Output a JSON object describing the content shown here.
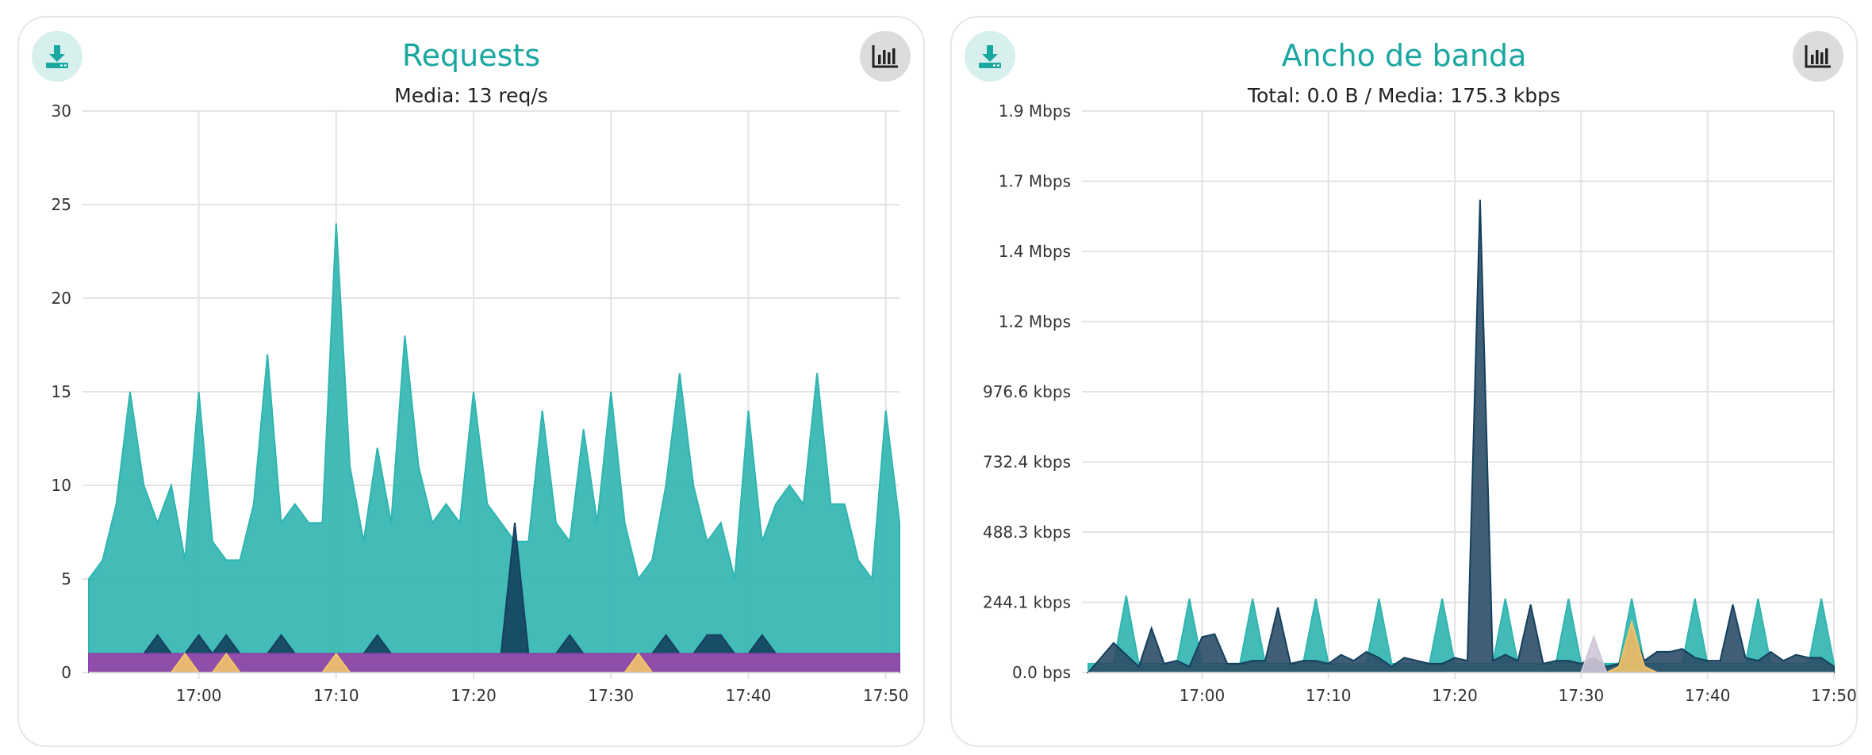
{
  "colors": {
    "accent": "#1aa7a0",
    "series_teal": "#2fb5b0",
    "series_navy": "#14405e",
    "series_purple": "#8e44ad",
    "series_orange": "#d98c5a",
    "series_yellow": "#f2c46b",
    "series_pink": "#d68f8f"
  },
  "panels": [
    {
      "title": "Requests",
      "subtitle": "Media: 13 req/s",
      "download_icon": "download-icon",
      "chart_icon": "bar-chart-icon"
    },
    {
      "title": "Ancho de banda",
      "subtitle": "Total: 0.0 B / Media: 175.3 kbps",
      "download_icon": "download-icon",
      "chart_icon": "bar-chart-icon"
    }
  ],
  "chart_data": [
    {
      "type": "area",
      "title": "Requests",
      "subtitle": "Media: 13 req/s",
      "xlabel": "",
      "ylabel": "",
      "ylim": [
        0,
        30
      ],
      "y_ticks": [
        "0",
        "5",
        "10",
        "15",
        "20",
        "25",
        "30"
      ],
      "x_ticks": [
        "17:00",
        "17:10",
        "17:20",
        "17:30",
        "17:40",
        "17:50"
      ],
      "x_range_min": [
        52,
        111
      ],
      "grid": true,
      "series": [
        {
          "color": "#2fb5b0",
          "fill": "#2fb5b0",
          "x": [
            52,
            53,
            54,
            55,
            56,
            57,
            58,
            59,
            60,
            61,
            62,
            63,
            64,
            65,
            66,
            67,
            68,
            69,
            70,
            71,
            72,
            73,
            74,
            75,
            76,
            77,
            78,
            79,
            80,
            81,
            82,
            83,
            84,
            85,
            86,
            87,
            88,
            89,
            90,
            91,
            92,
            93,
            94,
            95,
            96,
            97,
            98,
            99,
            100,
            101,
            102,
            103,
            104,
            105,
            106,
            107,
            108,
            109,
            110,
            111
          ],
          "values": [
            5,
            6,
            9,
            15,
            10,
            8,
            10,
            6,
            15,
            7,
            6,
            6,
            9,
            17,
            8,
            9,
            8,
            8,
            24,
            11,
            7,
            12,
            8,
            18,
            11,
            8,
            9,
            8,
            15,
            9,
            8,
            7,
            7,
            14,
            8,
            7,
            13,
            8,
            15,
            8,
            5,
            6,
            10,
            16,
            10,
            7,
            8,
            5,
            14,
            7,
            9,
            10,
            9,
            16,
            9,
            9,
            6,
            5,
            14,
            8
          ]
        },
        {
          "color": "#14405e",
          "fill": "#14405e",
          "x": [
            52,
            53,
            54,
            55,
            56,
            57,
            58,
            59,
            60,
            61,
            62,
            63,
            64,
            65,
            66,
            67,
            68,
            69,
            70,
            71,
            72,
            73,
            74,
            75,
            76,
            77,
            78,
            79,
            80,
            81,
            82,
            83,
            84,
            85,
            86,
            87,
            88,
            89,
            90,
            91,
            92,
            93,
            94,
            95,
            96,
            97,
            98,
            99,
            100,
            101,
            102,
            103,
            104,
            105,
            106,
            107,
            108,
            109,
            110,
            111
          ],
          "values": [
            1,
            1,
            1,
            1,
            1,
            2,
            1,
            1,
            2,
            1,
            2,
            1,
            1,
            1,
            2,
            1,
            1,
            1,
            1,
            1,
            1,
            2,
            1,
            1,
            1,
            1,
            1,
            1,
            1,
            1,
            1,
            8,
            1,
            1,
            1,
            2,
            1,
            1,
            1,
            1,
            1,
            1,
            2,
            1,
            1,
            2,
            2,
            1,
            1,
            2,
            1,
            1,
            1,
            1,
            1,
            1,
            1,
            1,
            1,
            1
          ]
        },
        {
          "color": "#8e44ad",
          "fill": "#9b4fb0",
          "x": [
            52,
            53,
            54,
            55,
            56,
            57,
            58,
            59,
            60,
            61,
            62,
            63,
            64,
            65,
            66,
            67,
            68,
            69,
            70,
            71,
            72,
            73,
            74,
            75,
            76,
            77,
            78,
            79,
            80,
            81,
            82,
            83,
            84,
            85,
            86,
            87,
            88,
            89,
            90,
            91,
            92,
            93,
            94,
            95,
            96,
            97,
            98,
            99,
            100,
            101,
            102,
            103,
            104,
            105,
            106,
            107,
            108,
            109,
            110,
            111
          ],
          "values": [
            1,
            1,
            1,
            1,
            1,
            1,
            1,
            1,
            1,
            1,
            1,
            1,
            1,
            1,
            1,
            1,
            1,
            1,
            1,
            1,
            1,
            1,
            1,
            1,
            1,
            1,
            1,
            1,
            1,
            1,
            1,
            1,
            1,
            1,
            1,
            1,
            1,
            1,
            1,
            1,
            1,
            1,
            1,
            1,
            1,
            1,
            1,
            1,
            1,
            1,
            1,
            1,
            1,
            1,
            1,
            1,
            1,
            1,
            1,
            1
          ]
        },
        {
          "color": "#f2c46b",
          "fill": "#f2c46b",
          "x": [
            58,
            59,
            60,
            61,
            62,
            63,
            64,
            69,
            70,
            71,
            90,
            91,
            92,
            93
          ],
          "values": [
            0,
            1,
            0,
            0,
            1,
            0,
            0,
            0,
            1,
            0,
            0,
            0,
            1,
            0
          ]
        }
      ]
    },
    {
      "type": "area",
      "title": "Ancho de banda",
      "subtitle": "Total: 0.0 B / Media: 175.3 kbps",
      "xlabel": "",
      "ylabel": "",
      "ylim": [
        0,
        1.9
      ],
      "y_ticks": [
        "0.0 bps",
        "244.1 kbps",
        "488.3 kbps",
        "732.4 kbps",
        "976.6 kbps",
        "1.2 Mbps",
        "1.4 Mbps",
        "1.7 Mbps",
        "1.9 Mbps"
      ],
      "x_ticks": [
        "17:00",
        "17:10",
        "17:20",
        "17:30",
        "17:40",
        "17:50"
      ],
      "x_range_min": [
        51,
        110
      ],
      "grid": true,
      "series": [
        {
          "color": "#2fb5b0",
          "fill": "#2fb5b0",
          "x": [
            51,
            52,
            53,
            54,
            55,
            56,
            57,
            58,
            59,
            60,
            61,
            62,
            63,
            64,
            65,
            66,
            67,
            68,
            69,
            70,
            71,
            72,
            73,
            74,
            75,
            76,
            77,
            78,
            79,
            80,
            81,
            82,
            83,
            84,
            85,
            86,
            87,
            88,
            89,
            90,
            91,
            92,
            93,
            94,
            95,
            96,
            97,
            98,
            99,
            100,
            101,
            102,
            103,
            104,
            105,
            106,
            107,
            108,
            109,
            110
          ],
          "values": [
            0.03,
            0.03,
            0.03,
            0.26,
            0.03,
            0.03,
            0.03,
            0.03,
            0.25,
            0.03,
            0.03,
            0.03,
            0.03,
            0.25,
            0.03,
            0.03,
            0.03,
            0.03,
            0.25,
            0.03,
            0.03,
            0.03,
            0.03,
            0.25,
            0.03,
            0.03,
            0.03,
            0.03,
            0.25,
            0.03,
            0.03,
            0.03,
            0.03,
            0.25,
            0.03,
            0.03,
            0.03,
            0.03,
            0.25,
            0.03,
            0.03,
            0.03,
            0.03,
            0.25,
            0.03,
            0.03,
            0.03,
            0.03,
            0.25,
            0.03,
            0.03,
            0.03,
            0.03,
            0.25,
            0.03,
            0.03,
            0.03,
            0.03,
            0.25,
            0.03
          ]
        },
        {
          "color": "#14405e",
          "fill": "#2b4c66",
          "x": [
            51,
            52,
            53,
            54,
            55,
            56,
            57,
            58,
            59,
            60,
            61,
            62,
            63,
            64,
            65,
            66,
            67,
            68,
            69,
            70,
            71,
            72,
            73,
            74,
            75,
            76,
            77,
            78,
            79,
            80,
            81,
            82,
            83,
            84,
            85,
            86,
            87,
            88,
            89,
            90,
            91,
            92,
            93,
            94,
            95,
            96,
            97,
            98,
            99,
            100,
            101,
            102,
            103,
            104,
            105,
            106,
            107,
            108,
            109,
            110
          ],
          "values": [
            0.0,
            0.05,
            0.1,
            0.06,
            0.02,
            0.15,
            0.03,
            0.04,
            0.02,
            0.12,
            0.13,
            0.03,
            0.03,
            0.04,
            0.04,
            0.22,
            0.03,
            0.04,
            0.04,
            0.03,
            0.06,
            0.04,
            0.07,
            0.05,
            0.02,
            0.05,
            0.04,
            0.03,
            0.03,
            0.05,
            0.04,
            1.6,
            0.04,
            0.06,
            0.04,
            0.23,
            0.03,
            0.04,
            0.04,
            0.03,
            0.05,
            0.02,
            0.03,
            0.15,
            0.04,
            0.07,
            0.07,
            0.08,
            0.05,
            0.04,
            0.04,
            0.23,
            0.05,
            0.04,
            0.07,
            0.04,
            0.06,
            0.05,
            0.05,
            0.02
          ]
        },
        {
          "color": "#f2c46b",
          "fill": "#f2c46b",
          "x": [
            92,
            93,
            94,
            95,
            96
          ],
          "values": [
            0,
            0.02,
            0.17,
            0.02,
            0
          ]
        },
        {
          "color": "#cfc6d6",
          "fill": "#cfc6d6",
          "x": [
            90,
            91,
            92
          ],
          "values": [
            0,
            0.12,
            0
          ]
        }
      ]
    }
  ]
}
